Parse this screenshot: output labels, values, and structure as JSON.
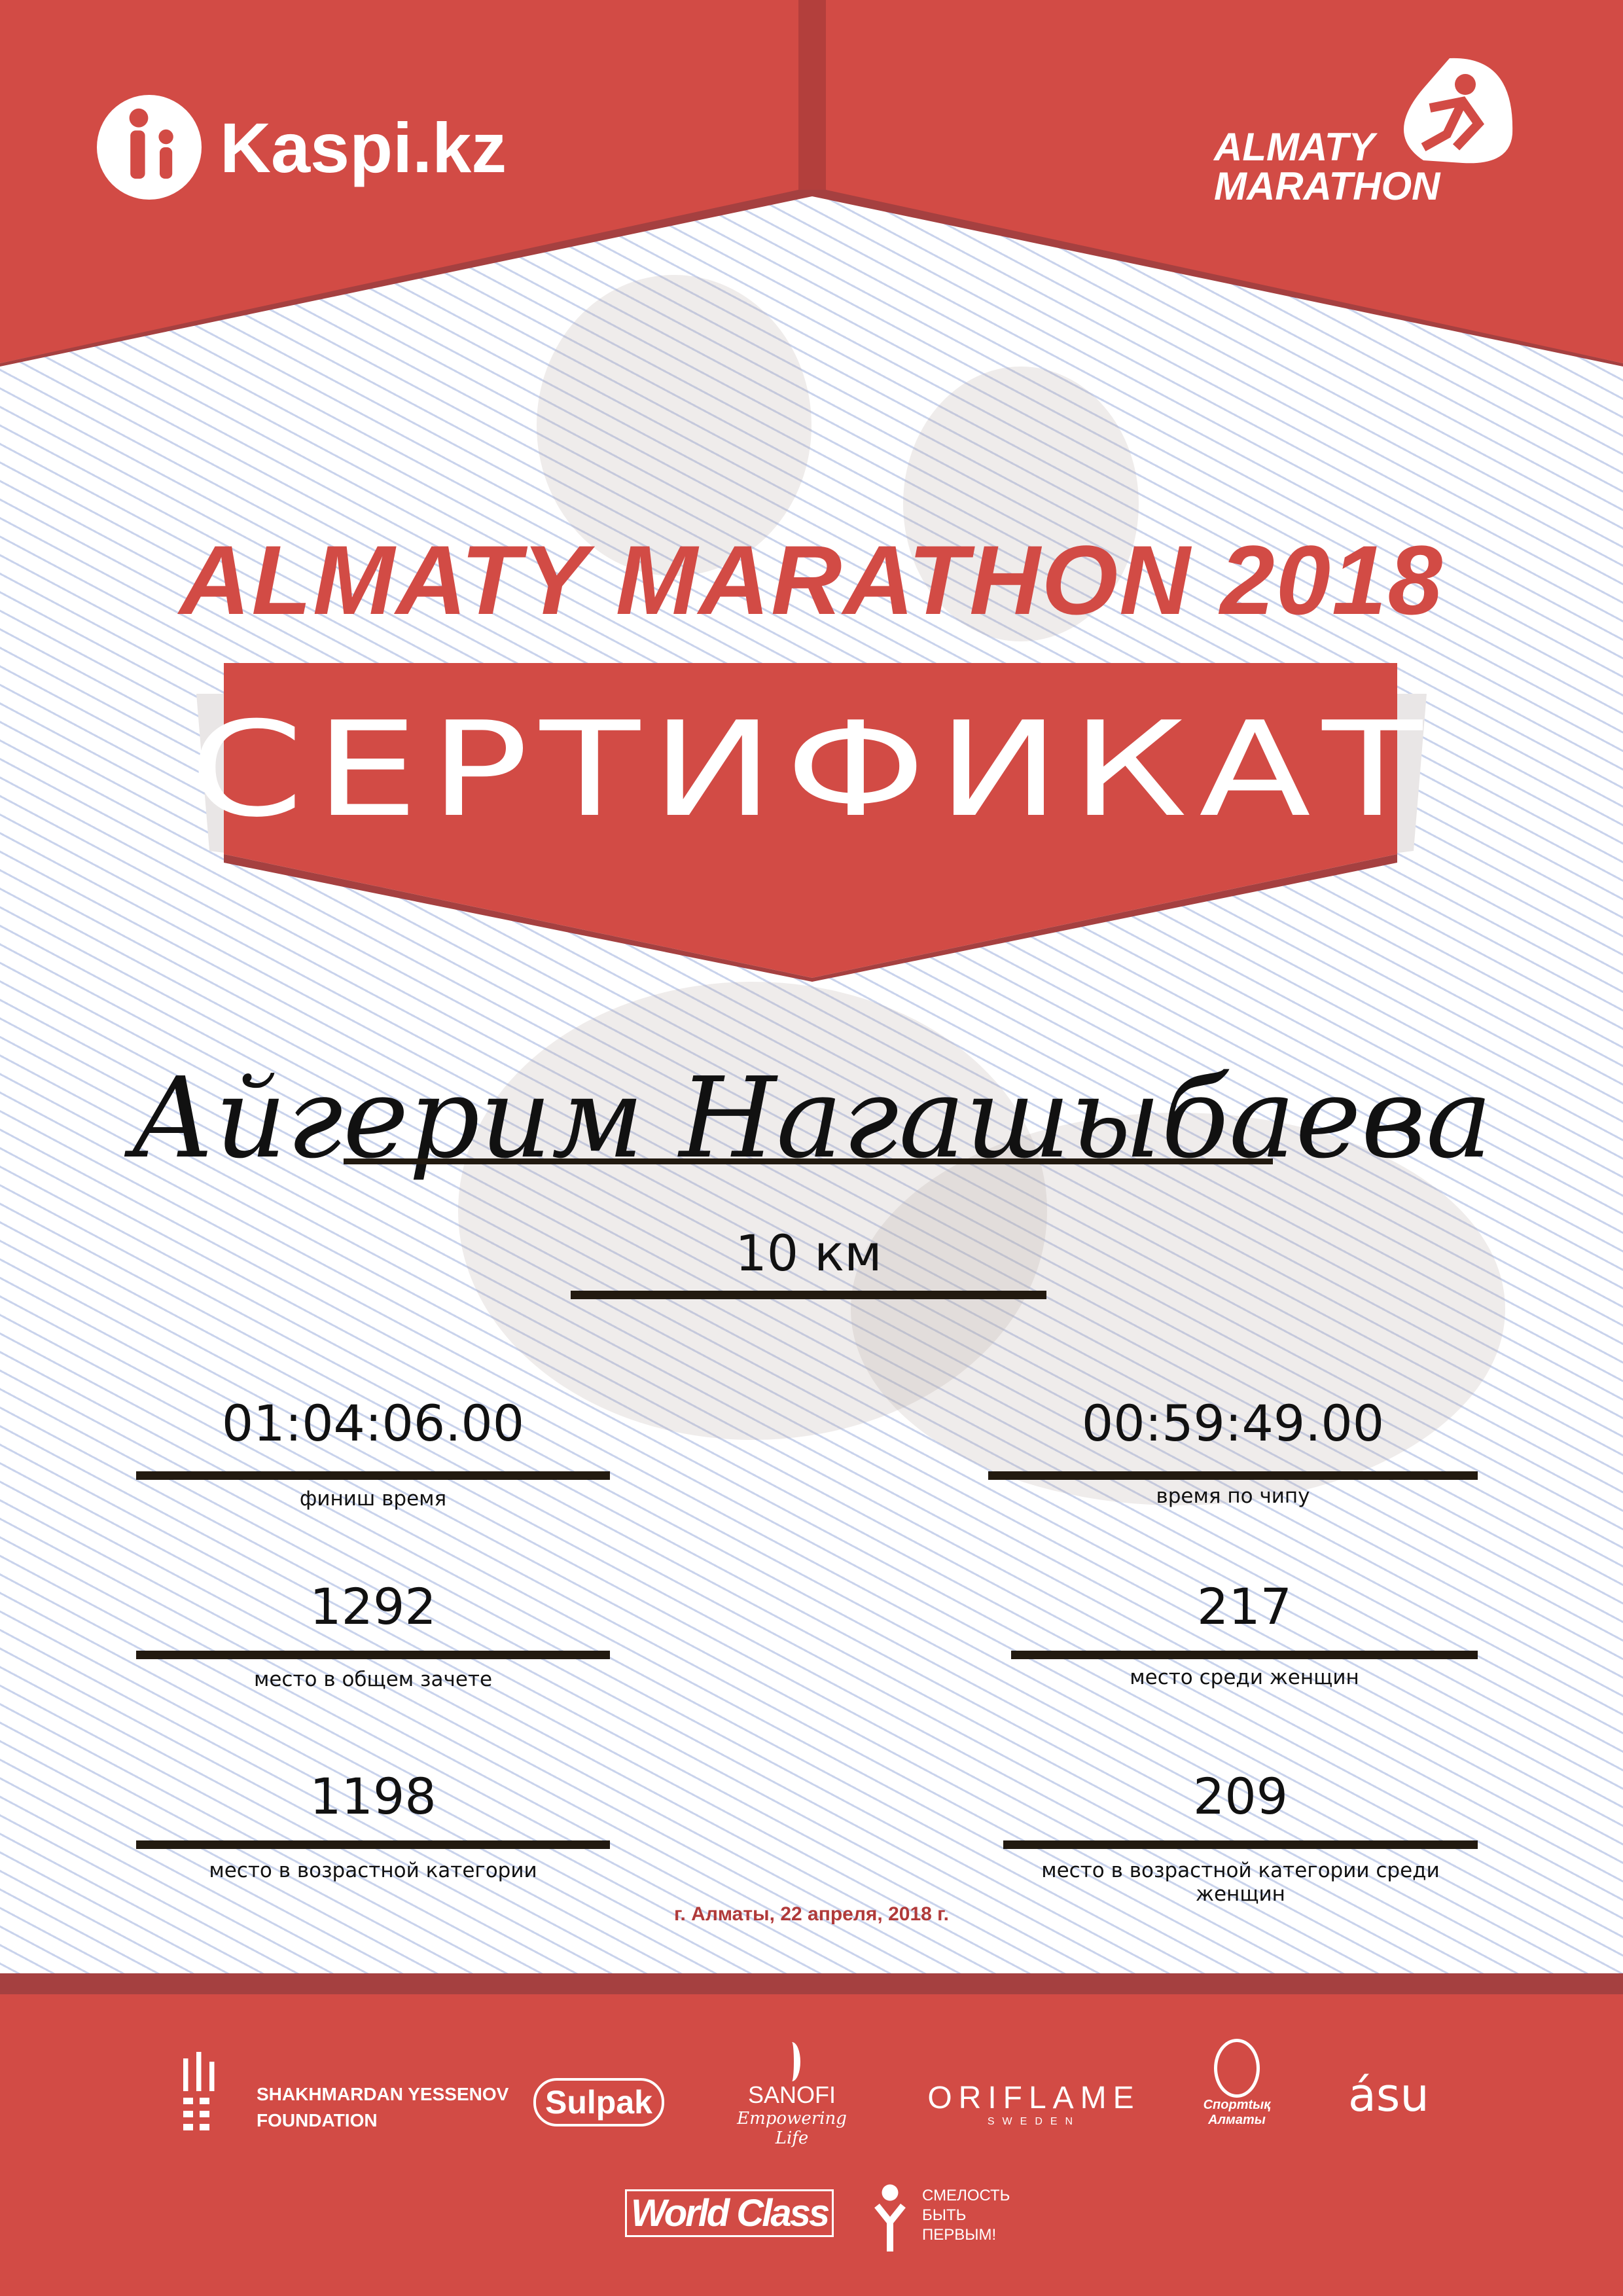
{
  "header": {
    "sponsor_logo": "Kaspi.kz",
    "event_logo_line1": "ALMATY",
    "event_logo_line2": "MARATHON"
  },
  "title": "ALMATY MARATHON 2018",
  "banner": "СЕРТИФИКАТ",
  "participant": {
    "name": "Айгерим Нагашыбаева",
    "distance": "10 км"
  },
  "results": [
    {
      "value": "01:04:06.00",
      "label": "финиш время"
    },
    {
      "value": "00:59:49.00",
      "label": "время по чипу"
    },
    {
      "value": "1292",
      "label": "место в общем зачете"
    },
    {
      "value": "217",
      "label": "место среди женщин"
    },
    {
      "value": "1198",
      "label": "место в возрастной категории"
    },
    {
      "value": "209",
      "label": "место в возрастной категории среди женщин"
    }
  ],
  "date": "г. Алматы, 22 апреля, 2018 г.",
  "partners": {
    "yessenov1": "SHAKHMARDAN YESSENOV",
    "yessenov2": "FOUNDATION",
    "sulpak": "Sulpak",
    "sanofi": "SANOFI",
    "sanofi_tag": "Empowering Life",
    "oriflame": "ORIFLAME",
    "oriflame_sub": "SWEDEN",
    "sport1": "Спортtық",
    "sport2": "Алматы",
    "asu": "ásu",
    "worldclass": "World Class",
    "fund1": "СМЕЛОСТЬ",
    "fund2": "БЫТЬ",
    "fund3": "ПЕРВЫМ!"
  },
  "colors": {
    "brand_red": "#d24b45",
    "dark_red": "#a54040",
    "line": "#221a10"
  }
}
